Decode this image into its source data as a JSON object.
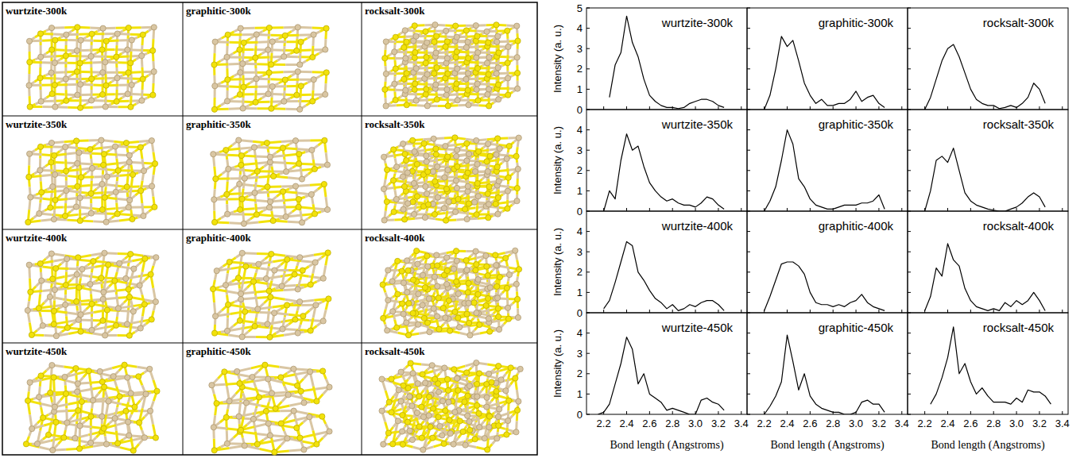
{
  "structures": {
    "panels": [
      "wurtzite-300k",
      "graphitic-300k",
      "rocksalt-300k",
      "wurtzite-350k",
      "graphitic-350k",
      "rocksalt-350k",
      "wurtzite-400k",
      "graphitic-400k",
      "rocksalt-400k",
      "wurtzite-450k",
      "graphitic-450k",
      "rocksalt-450k"
    ]
  },
  "chart_data": [
    {
      "type": "line",
      "title": "wurtzite-300k",
      "y_label": "Intensity (a. u.)",
      "tick_labels": "y",
      "color": "#000000",
      "xlim": [
        2.05,
        3.45
      ],
      "ylim": [
        0,
        5
      ],
      "xticks": [
        2.2,
        2.4,
        2.6,
        2.8,
        {
          "value": 3,
          "label": "3.0"
        },
        3.2,
        3.4
      ],
      "yticks": [
        0,
        1,
        2,
        3,
        4,
        5
      ],
      "x": [
        2.15,
        2.2,
        2.25,
        2.3,
        2.35,
        2.4,
        2.45,
        2.5,
        2.55,
        2.6,
        2.65,
        2.7,
        2.75,
        2.8,
        2.85,
        2.9,
        2.95,
        3.0,
        3.05,
        3.1,
        3.15,
        3.2,
        3.25,
        3.3
      ],
      "values": [
        null,
        null,
        0.6,
        2.2,
        2.8,
        4.6,
        3.3,
        2.6,
        1.5,
        0.7,
        0.4,
        0.2,
        0.1,
        0.1,
        0.05,
        0.1,
        0.3,
        0.4,
        0.5,
        0.5,
        0.4,
        0.2,
        0.1,
        null
      ]
    },
    {
      "type": "line",
      "title": "graphitic-300k",
      "tick_labels": false,
      "color": "#000000",
      "xlim": [
        2.05,
        3.45
      ],
      "ylim": [
        0,
        5
      ],
      "xticks": [
        2.2,
        2.4,
        2.6,
        2.8,
        {
          "value": 3,
          "label": "3.0"
        },
        3.2,
        3.4
      ],
      "yticks": [
        0,
        1,
        2,
        3,
        4,
        5
      ],
      "x": [
        2.15,
        2.2,
        2.25,
        2.3,
        2.35,
        2.4,
        2.45,
        2.5,
        2.55,
        2.6,
        2.65,
        2.7,
        2.75,
        2.8,
        2.85,
        2.9,
        2.95,
        3.0,
        3.05,
        3.1,
        3.15,
        3.2,
        3.25,
        3.3
      ],
      "values": [
        null,
        0,
        0.7,
        2.0,
        3.6,
        3.1,
        3.4,
        2.4,
        1.3,
        0.7,
        0.3,
        0.5,
        0.2,
        0.2,
        0.3,
        0.3,
        0.5,
        0.9,
        0.4,
        0.6,
        0.7,
        0.3,
        0.1,
        null
      ]
    },
    {
      "type": "line",
      "title": "rocksalt-300k",
      "tick_labels": false,
      "color": "#000000",
      "xlim": [
        2.05,
        3.45
      ],
      "ylim": [
        0,
        5
      ],
      "xticks": [
        2.2,
        2.4,
        2.6,
        2.8,
        {
          "value": 3,
          "label": "3.0"
        },
        3.2,
        3.4
      ],
      "yticks": [
        0,
        1,
        2,
        3,
        4,
        5
      ],
      "x": [
        2.15,
        2.2,
        2.25,
        2.3,
        2.35,
        2.4,
        2.45,
        2.5,
        2.55,
        2.6,
        2.65,
        2.7,
        2.75,
        2.8,
        2.85,
        2.9,
        2.95,
        3.0,
        3.05,
        3.1,
        3.15,
        3.2,
        3.25,
        3.3
      ],
      "values": [
        null,
        0,
        0.6,
        1.5,
        2.4,
        3.0,
        3.2,
        2.6,
        1.8,
        1.0,
        0.5,
        0.3,
        0.2,
        0.2,
        0.05,
        0.1,
        0.2,
        0.1,
        0.3,
        0.6,
        1.3,
        1.0,
        0.3,
        null
      ]
    },
    {
      "type": "line",
      "title": "wurtzite-350k",
      "y_label": "Intensity (a. u.)",
      "tick_labels": "y",
      "color": "#000000",
      "xlim": [
        2.05,
        3.45
      ],
      "ylim": [
        0,
        5
      ],
      "xticks": [
        2.2,
        2.4,
        2.6,
        2.8,
        {
          "value": 3,
          "label": "3.0"
        },
        3.2,
        3.4
      ],
      "yticks": [
        0,
        1,
        2,
        3,
        4
      ],
      "x": [
        2.15,
        2.2,
        2.25,
        2.3,
        2.35,
        2.4,
        2.45,
        2.5,
        2.55,
        2.6,
        2.65,
        2.7,
        2.75,
        2.8,
        2.85,
        2.9,
        2.95,
        3.0,
        3.05,
        3.1,
        3.15,
        3.2,
        3.25,
        3.3
      ],
      "values": [
        null,
        0,
        1.0,
        0.6,
        2.5,
        3.8,
        3.0,
        3.2,
        2.2,
        1.4,
        1.0,
        0.7,
        0.5,
        0.6,
        0.4,
        0.3,
        0.3,
        0.2,
        0.4,
        0.7,
        0.6,
        0.3,
        0.1,
        null
      ]
    },
    {
      "type": "line",
      "title": "graphitic-350k",
      "tick_labels": false,
      "color": "#000000",
      "xlim": [
        2.05,
        3.45
      ],
      "ylim": [
        0,
        5
      ],
      "xticks": [
        2.2,
        2.4,
        2.6,
        2.8,
        {
          "value": 3,
          "label": "3.0"
        },
        3.2,
        3.4
      ],
      "yticks": [
        0,
        1,
        2,
        3,
        4
      ],
      "x": [
        2.15,
        2.2,
        2.25,
        2.3,
        2.35,
        2.4,
        2.45,
        2.5,
        2.55,
        2.6,
        2.65,
        2.7,
        2.75,
        2.8,
        2.85,
        2.9,
        2.95,
        3.0,
        3.05,
        3.1,
        3.15,
        3.2,
        3.25,
        3.3
      ],
      "values": [
        null,
        0,
        0.5,
        1.2,
        2.5,
        4.0,
        3.3,
        1.6,
        1.2,
        0.6,
        0.3,
        0.2,
        0.1,
        0.1,
        0.2,
        0.3,
        0.3,
        0.3,
        0.4,
        0.4,
        0.5,
        0.8,
        0.1,
        null
      ]
    },
    {
      "type": "line",
      "title": "rocksalt-350k",
      "tick_labels": false,
      "color": "#000000",
      "xlim": [
        2.05,
        3.45
      ],
      "ylim": [
        0,
        5
      ],
      "xticks": [
        2.2,
        2.4,
        2.6,
        2.8,
        {
          "value": 3,
          "label": "3.0"
        },
        3.2,
        3.4
      ],
      "yticks": [
        0,
        1,
        2,
        3,
        4
      ],
      "x": [
        2.15,
        2.2,
        2.25,
        2.3,
        2.35,
        2.4,
        2.45,
        2.5,
        2.55,
        2.6,
        2.65,
        2.7,
        2.75,
        2.8,
        2.85,
        2.9,
        2.95,
        3.0,
        3.05,
        3.1,
        3.15,
        3.2,
        3.25,
        3.3
      ],
      "values": [
        null,
        0,
        1.0,
        2.5,
        2.7,
        2.4,
        3.1,
        2.0,
        0.9,
        0.5,
        0.3,
        0.2,
        0.1,
        0.05,
        0,
        0,
        0.1,
        0.2,
        0.4,
        0.7,
        0.9,
        0.7,
        0.2,
        null
      ]
    },
    {
      "type": "line",
      "title": "wurtzite-400k",
      "y_label": "Intensity (a. u.)",
      "tick_labels": "y",
      "color": "#000000",
      "xlim": [
        2.05,
        3.45
      ],
      "ylim": [
        0,
        5
      ],
      "xticks": [
        2.2,
        2.4,
        2.6,
        2.8,
        {
          "value": 3,
          "label": "3.0"
        },
        3.2,
        3.4
      ],
      "yticks": [
        0,
        1,
        2,
        3,
        4
      ],
      "x": [
        2.15,
        2.2,
        2.25,
        2.3,
        2.35,
        2.4,
        2.45,
        2.5,
        2.55,
        2.6,
        2.65,
        2.7,
        2.75,
        2.8,
        2.85,
        2.9,
        2.95,
        3.0,
        3.05,
        3.1,
        3.15,
        3.2,
        3.25,
        3.3
      ],
      "values": [
        null,
        0.2,
        0.6,
        1.5,
        2.5,
        3.5,
        3.3,
        2.0,
        1.6,
        1.1,
        0.7,
        0.5,
        0.2,
        0.4,
        0.1,
        0.2,
        0.4,
        0.3,
        0.5,
        0.6,
        0.6,
        0.4,
        0.1,
        null
      ]
    },
    {
      "type": "line",
      "title": "graphitic-400k",
      "tick_labels": false,
      "color": "#000000",
      "xlim": [
        2.05,
        3.45
      ],
      "ylim": [
        0,
        5
      ],
      "xticks": [
        2.2,
        2.4,
        2.6,
        2.8,
        {
          "value": 3,
          "label": "3.0"
        },
        3.2,
        3.4
      ],
      "yticks": [
        0,
        1,
        2,
        3,
        4
      ],
      "x": [
        2.15,
        2.2,
        2.25,
        2.3,
        2.35,
        2.4,
        2.45,
        2.5,
        2.55,
        2.6,
        2.65,
        2.7,
        2.75,
        2.8,
        2.85,
        2.9,
        2.95,
        3.0,
        3.05,
        3.1,
        3.15,
        3.2,
        3.25,
        3.3
      ],
      "values": [
        null,
        0.1,
        0.8,
        1.6,
        2.4,
        2.5,
        2.5,
        2.3,
        1.9,
        1.0,
        0.5,
        0.4,
        0.4,
        0.3,
        0.4,
        0.3,
        0.5,
        0.6,
        0.9,
        0.5,
        0.3,
        0.2,
        0.1,
        null
      ]
    },
    {
      "type": "line",
      "title": "rocksalt-400k",
      "tick_labels": false,
      "color": "#000000",
      "xlim": [
        2.05,
        3.45
      ],
      "ylim": [
        0,
        5
      ],
      "xticks": [
        2.2,
        2.4,
        2.6,
        2.8,
        {
          "value": 3,
          "label": "3.0"
        },
        3.2,
        3.4
      ],
      "yticks": [
        0,
        1,
        2,
        3,
        4
      ],
      "x": [
        2.15,
        2.2,
        2.25,
        2.3,
        2.35,
        2.4,
        2.45,
        2.5,
        2.55,
        2.6,
        2.65,
        2.7,
        2.75,
        2.8,
        2.85,
        2.9,
        2.95,
        3.0,
        3.05,
        3.1,
        3.15,
        3.2,
        3.25,
        3.3
      ],
      "values": [
        null,
        0.1,
        0.8,
        2.2,
        1.8,
        3.4,
        2.6,
        2.3,
        1.2,
        0.6,
        0.3,
        0.2,
        0.1,
        0.2,
        0.1,
        0.5,
        0.3,
        0.6,
        0.4,
        0.6,
        1.0,
        0.6,
        0.1,
        null
      ]
    },
    {
      "type": "line",
      "title": "wurtzite-450k",
      "y_label": "Intensity (a. u.)",
      "x_label": "Bond length (Angstroms)",
      "color": "#000000",
      "xlim": [
        2.05,
        3.45
      ],
      "ylim": [
        0,
        5
      ],
      "xticks": [
        2.2,
        2.4,
        2.6,
        2.8,
        {
          "value": 3,
          "label": "3.0"
        },
        3.2,
        3.4
      ],
      "yticks": [
        0,
        1,
        2,
        3,
        4
      ],
      "x": [
        2.15,
        2.2,
        2.25,
        2.3,
        2.35,
        2.4,
        2.45,
        2.5,
        2.55,
        2.6,
        2.65,
        2.7,
        2.75,
        2.8,
        2.85,
        2.9,
        2.95,
        3.0,
        3.05,
        3.1,
        3.15,
        3.2,
        3.25,
        3.3
      ],
      "values": [
        0,
        0.1,
        0.5,
        1.5,
        2.5,
        3.8,
        3.2,
        1.5,
        2.0,
        1.0,
        0.8,
        0.6,
        0.2,
        0.3,
        0.2,
        0.1,
        0,
        0,
        0.7,
        0.8,
        0.6,
        0.5,
        0.2,
        null
      ]
    },
    {
      "type": "line",
      "title": "graphitic-450k",
      "x_label": "Bond length (Angstroms)",
      "tick_labels": "x",
      "color": "#000000",
      "xlim": [
        2.05,
        3.45
      ],
      "ylim": [
        0,
        5
      ],
      "xticks": [
        2.2,
        2.4,
        2.6,
        2.8,
        {
          "value": 3,
          "label": "3.0"
        },
        3.2,
        3.4
      ],
      "yticks": [
        0,
        1,
        2,
        3,
        4
      ],
      "x": [
        2.15,
        2.2,
        2.25,
        2.3,
        2.35,
        2.4,
        2.45,
        2.5,
        2.55,
        2.6,
        2.65,
        2.7,
        2.75,
        2.8,
        2.85,
        2.9,
        2.95,
        3.0,
        3.05,
        3.1,
        3.15,
        3.2,
        3.25,
        3.3
      ],
      "values": [
        null,
        0,
        0.4,
        0.9,
        1.6,
        3.9,
        2.6,
        1.2,
        2.0,
        0.9,
        0.5,
        0.3,
        0.2,
        0.1,
        0.1,
        0,
        0,
        0.1,
        0.6,
        0.7,
        0.5,
        0.5,
        0.1,
        null
      ]
    },
    {
      "type": "line",
      "title": "rocksalt-450k",
      "x_label": "Bond length (Angstroms)",
      "tick_labels": "x",
      "color": "#000000",
      "xlim": [
        2.05,
        3.45
      ],
      "ylim": [
        0,
        5
      ],
      "xticks": [
        2.2,
        2.4,
        2.6,
        2.8,
        {
          "value": 3,
          "label": "3.0"
        },
        3.2,
        3.4
      ],
      "yticks": [
        0,
        1,
        2,
        3,
        4
      ],
      "x": [
        2.15,
        2.2,
        2.25,
        2.3,
        2.35,
        2.4,
        2.45,
        2.5,
        2.55,
        2.6,
        2.65,
        2.7,
        2.75,
        2.8,
        2.85,
        2.9,
        2.95,
        3.0,
        3.05,
        3.1,
        3.15,
        3.2,
        3.25,
        3.3
      ],
      "values": [
        null,
        null,
        0.5,
        1.0,
        1.8,
        2.8,
        4.3,
        2.0,
        2.5,
        1.6,
        1.0,
        1.3,
        0.9,
        0.6,
        0.6,
        0.6,
        0.5,
        0.8,
        0.6,
        1.2,
        1.1,
        1.1,
        0.9,
        0.5
      ]
    }
  ]
}
